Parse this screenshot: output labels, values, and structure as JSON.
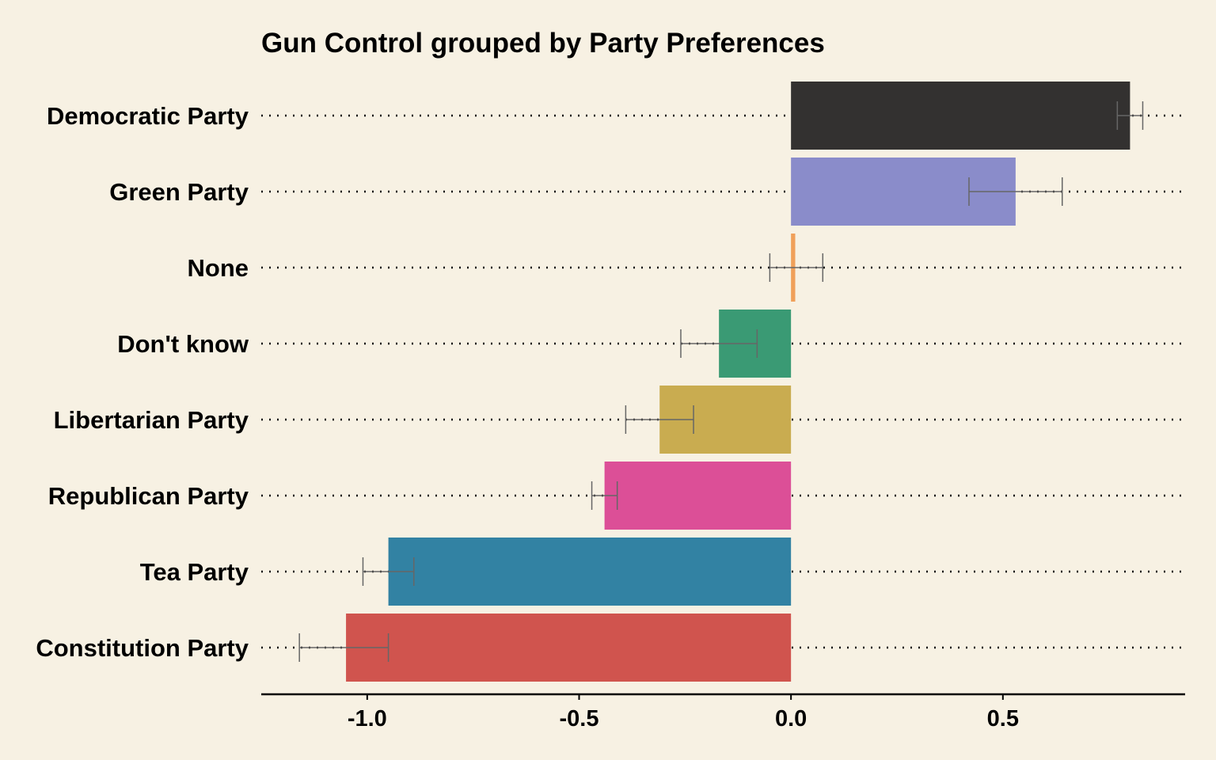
{
  "chart_data": {
    "type": "bar",
    "orientation": "horizontal",
    "title": "Gun Control grouped by Party Preferences",
    "xlabel": "",
    "ylabel": "",
    "xlim": [
      -1.25,
      0.93
    ],
    "x_ticks": [
      -1.0,
      -0.5,
      0.0,
      0.5
    ],
    "x_tick_labels": [
      "-1.0",
      "-0.5",
      "0.0",
      "0.5"
    ],
    "grid": "dotted horizontal lines per category",
    "legend": "none",
    "background_color": "#f7f1e3",
    "categories": [
      "Democratic Party",
      "Green Party",
      "None",
      "Don't know",
      "Libertarian Party",
      "Republican Party",
      "Tea Party",
      "Constitution Party"
    ],
    "values": [
      0.8,
      0.53,
      0.01,
      -0.17,
      -0.31,
      -0.44,
      -0.95,
      -1.05
    ],
    "error_low": [
      0.77,
      0.42,
      -0.05,
      -0.26,
      -0.39,
      -0.47,
      -1.01,
      -1.16
    ],
    "error_high": [
      0.83,
      0.64,
      0.075,
      -0.08,
      -0.23,
      -0.41,
      -0.89,
      -0.95
    ],
    "colors": [
      "#333130",
      "#8a8cca",
      "#f0a05a",
      "#3a9a74",
      "#c9ac50",
      "#dc4f97",
      "#3282a3",
      "#d0544e"
    ],
    "error_bar_color": "#666666"
  }
}
